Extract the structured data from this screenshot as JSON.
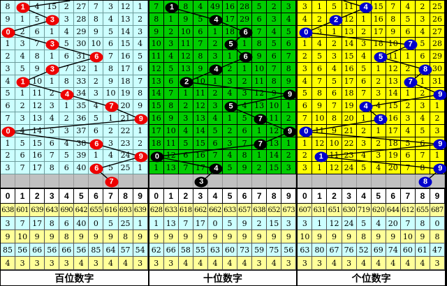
{
  "chart_data": {
    "type": "table",
    "description_visible_labels": [
      "百位数字",
      "十位数字",
      "个位数字"
    ],
    "series": [
      {
        "name": "百位数字",
        "drawn_digits": [
          1,
          3,
          0,
          3,
          6,
          3,
          1,
          4,
          7,
          9,
          0,
          6,
          9,
          6
        ],
        "pending_digit": 7
      },
      {
        "name": "十位数字",
        "drawn_digits": [
          1,
          4,
          6,
          5,
          6,
          4,
          2,
          9,
          5,
          7,
          9,
          7,
          0,
          4
        ],
        "pending_digit": 3
      },
      {
        "name": "个位数字",
        "drawn_digits": [
          4,
          2,
          0,
          7,
          5,
          8,
          7,
          9,
          4,
          5,
          0,
          9,
          1,
          9
        ],
        "pending_digit": 8
      }
    ]
  },
  "stats_row_bgs": [
    "#FFFF99",
    "#CCFFFF",
    "#FFFF99",
    "#CCFFFF",
    "#FFFF99"
  ],
  "gray_row_bg": "#C0C0C0",
  "line_color": "#000000",
  "panels": [
    {
      "name": "hundreds",
      "label": "百位数字",
      "panel_bg": "#CCFFFF",
      "grid_line": "#6E9C9C",
      "ball_color": "#EE0000",
      "ball_text_color": "#FFFFFF",
      "entry_top_col": 4.2,
      "ball_cols": [
        1,
        3,
        0,
        3,
        6,
        3,
        1,
        4,
        7,
        9,
        0,
        6,
        9,
        6
      ],
      "pending_col": 7,
      "rows": [
        [
          "8",
          "1",
          "4",
          "15",
          "2",
          "27",
          "7",
          "3",
          "12",
          "1"
        ],
        [
          "9",
          "1",
          "5",
          "3",
          "3",
          "28",
          "8",
          "4",
          "13",
          "2"
        ],
        [
          "0",
          "2",
          "6",
          "1",
          "4",
          "29",
          "9",
          "5",
          "14",
          "3"
        ],
        [
          "1",
          "3",
          "7",
          "3",
          "5",
          "30",
          "10",
          "6",
          "15",
          "4"
        ],
        [
          "2",
          "4",
          "8",
          "1",
          "6",
          "31",
          "6",
          "7",
          "16",
          "5"
        ],
        [
          "3",
          "5",
          "9",
          "3",
          "7",
          "32",
          "1",
          "8",
          "17",
          "6"
        ],
        [
          "4",
          "1",
          "10",
          "1",
          "8",
          "33",
          "2",
          "9",
          "18",
          "7"
        ],
        [
          "5",
          "1",
          "11",
          "2",
          "4",
          "34",
          "3",
          "10",
          "19",
          "8"
        ],
        [
          "6",
          "2",
          "12",
          "3",
          "1",
          "35",
          "4",
          "7",
          "20",
          "9"
        ],
        [
          "7",
          "3",
          "13",
          "4",
          "2",
          "36",
          "5",
          "1",
          "21",
          "9"
        ],
        [
          "0",
          "4",
          "14",
          "5",
          "3",
          "37",
          "6",
          "2",
          "22",
          "1"
        ],
        [
          "1",
          "5",
          "15",
          "6",
          "4",
          "38",
          "6",
          "3",
          "23",
          "2"
        ],
        [
          "2",
          "6",
          "16",
          "7",
          "5",
          "39",
          "1",
          "4",
          "24",
          "9"
        ],
        [
          "3",
          "7",
          "17",
          "8",
          "6",
          "40",
          "6",
          "5",
          "25",
          "1"
        ]
      ],
      "digit_header": [
        "0",
        "1",
        "2",
        "3",
        "4",
        "5",
        "6",
        "7",
        "8",
        "9"
      ],
      "stats_rows": [
        [
          "638",
          "601",
          "639",
          "643",
          "690",
          "642",
          "655",
          "616",
          "693",
          "639"
        ],
        [
          "3",
          "7",
          "17",
          "8",
          "6",
          "40",
          "0",
          "5",
          "25",
          "1"
        ],
        [
          "9",
          "10",
          "9",
          "9",
          "8",
          "9",
          "9",
          "9",
          "8",
          "9"
        ],
        [
          "85",
          "56",
          "66",
          "56",
          "66",
          "56",
          "85",
          "64",
          "57",
          "54"
        ],
        [
          "4",
          "3",
          "3",
          "3",
          "3",
          "4",
          "3",
          "4",
          "4",
          "3"
        ]
      ]
    },
    {
      "name": "tens",
      "label": "十位数字",
      "panel_bg": "#00CC00",
      "grid_line": "#000000",
      "ball_color": "#000000",
      "ball_text_color": "#FFFFFF",
      "entry_top_col": null,
      "ball_cols": [
        1,
        4,
        6,
        5,
        6,
        4,
        2,
        9,
        5,
        7,
        9,
        7,
        0,
        4
      ],
      "pending_col": 3,
      "rows": [
        [
          "7",
          "1",
          "8",
          "4",
          "49",
          "16",
          "28",
          "5",
          "2",
          "3"
        ],
        [
          "8",
          "1",
          "9",
          "5",
          "4",
          "17",
          "29",
          "6",
          "3",
          "4"
        ],
        [
          "9",
          "2",
          "10",
          "6",
          "1",
          "18",
          "6",
          "7",
          "4",
          "5"
        ],
        [
          "10",
          "3",
          "11",
          "7",
          "2",
          "5",
          "1",
          "8",
          "5",
          "6"
        ],
        [
          "11",
          "4",
          "12",
          "8",
          "3",
          "1",
          "6",
          "9",
          "6",
          "7"
        ],
        [
          "12",
          "5",
          "13",
          "9",
          "4",
          "2",
          "1",
          "10",
          "7",
          "8"
        ],
        [
          "13",
          "6",
          "2",
          "10",
          "1",
          "3",
          "2",
          "11",
          "8",
          "9"
        ],
        [
          "14",
          "7",
          "1",
          "11",
          "2",
          "4",
          "3",
          "12",
          "9",
          "9"
        ],
        [
          "15",
          "8",
          "2",
          "12",
          "3",
          "5",
          "4",
          "13",
          "10",
          "1"
        ],
        [
          "16",
          "9",
          "3",
          "13",
          "4",
          "1",
          "5",
          "7",
          "11",
          "2"
        ],
        [
          "17",
          "10",
          "4",
          "14",
          "5",
          "2",
          "6",
          "1",
          "12",
          "9"
        ],
        [
          "18",
          "11",
          "5",
          "15",
          "6",
          "3",
          "7",
          "7",
          "13",
          "1"
        ],
        [
          "0",
          "12",
          "6",
          "16",
          "7",
          "4",
          "8",
          "1",
          "14",
          "2"
        ],
        [
          "1",
          "13",
          "7",
          "17",
          "4",
          "5",
          "9",
          "2",
          "15",
          "3"
        ]
      ],
      "digit_header": [
        "0",
        "1",
        "2",
        "3",
        "4",
        "5",
        "6",
        "7",
        "8",
        "9"
      ],
      "stats_rows": [
        [
          "628",
          "633",
          "618",
          "662",
          "662",
          "633",
          "657",
          "638",
          "652",
          "673"
        ],
        [
          "1",
          "13",
          "7",
          "17",
          "0",
          "5",
          "9",
          "2",
          "15",
          "3"
        ],
        [
          "9",
          "9",
          "9",
          "9",
          "9",
          "9",
          "9",
          "9",
          "9",
          "9"
        ],
        [
          "62",
          "66",
          "58",
          "55",
          "63",
          "60",
          "73",
          "59",
          "75",
          "56"
        ],
        [
          "3",
          "3",
          "4",
          "4",
          "4",
          "4",
          "4",
          "3",
          "4",
          "3"
        ]
      ]
    },
    {
      "name": "units",
      "label": "个位数字",
      "panel_bg": "#FFFF00",
      "grid_line": "#000000",
      "ball_color": "#0000CC",
      "ball_text_color": "#FFFFFF",
      "entry_top_col": 2.5,
      "ball_cols": [
        4,
        2,
        0,
        7,
        5,
        8,
        7,
        9,
        4,
        5,
        0,
        9,
        1,
        9
      ],
      "pending_col": 8,
      "rows": [
        [
          "3",
          "1",
          "5",
          "11",
          "4",
          "15",
          "7",
          "4",
          "2",
          "25"
        ],
        [
          "4",
          "2",
          "2",
          "12",
          "1",
          "16",
          "8",
          "5",
          "3",
          "26"
        ],
        [
          "0",
          "3",
          "1",
          "13",
          "2",
          "17",
          "9",
          "6",
          "4",
          "27"
        ],
        [
          "1",
          "4",
          "2",
          "14",
          "3",
          "18",
          "10",
          "7",
          "5",
          "28"
        ],
        [
          "2",
          "5",
          "3",
          "15",
          "4",
          "5",
          "11",
          "1",
          "6",
          "29"
        ],
        [
          "3",
          "6",
          "4",
          "16",
          "5",
          "1",
          "12",
          "2",
          "8",
          "30"
        ],
        [
          "4",
          "7",
          "5",
          "17",
          "6",
          "2",
          "13",
          "7",
          "1",
          "31"
        ],
        [
          "5",
          "8",
          "6",
          "18",
          "7",
          "3",
          "14",
          "1",
          "2",
          "9"
        ],
        [
          "6",
          "9",
          "7",
          "19",
          "4",
          "4",
          "15",
          "2",
          "3",
          "1"
        ],
        [
          "7",
          "10",
          "8",
          "20",
          "1",
          "5",
          "16",
          "3",
          "4",
          "2"
        ],
        [
          "0",
          "11",
          "9",
          "21",
          "2",
          "1",
          "17",
          "4",
          "5",
          "3"
        ],
        [
          "1",
          "12",
          "10",
          "22",
          "3",
          "2",
          "18",
          "5",
          "6",
          "9"
        ],
        [
          "2",
          "1",
          "11",
          "23",
          "4",
          "3",
          "19",
          "6",
          "7",
          "1"
        ],
        [
          "3",
          "1",
          "12",
          "24",
          "5",
          "4",
          "20",
          "7",
          "8",
          "9"
        ]
      ],
      "digit_header": [
        "0",
        "1",
        "2",
        "3",
        "4",
        "5",
        "6",
        "7",
        "8",
        "9"
      ],
      "stats_rows": [
        [
          "607",
          "631",
          "651",
          "630",
          "719",
          "620",
          "644",
          "612",
          "655",
          "687"
        ],
        [
          "3",
          "1",
          "12",
          "24",
          "5",
          "4",
          "20",
          "7",
          "8",
          "0"
        ],
        [
          "10",
          "9",
          "9",
          "9",
          "8",
          "9",
          "9",
          "10",
          "9",
          "8"
        ],
        [
          "63",
          "80",
          "67",
          "76",
          "52",
          "69",
          "74",
          "60",
          "61",
          "47"
        ],
        [
          "3",
          "3",
          "4",
          "3",
          "4",
          "4",
          "4",
          "4",
          "4",
          "3"
        ]
      ]
    }
  ]
}
